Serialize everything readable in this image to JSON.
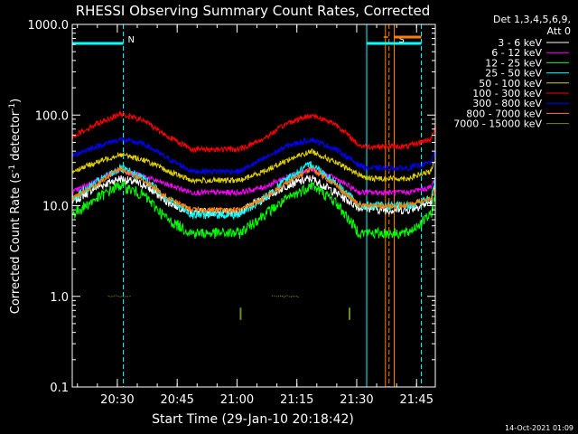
{
  "chart_data": {
    "type": "line",
    "title": "RHESSI Observing Summary Count Rates, Corrected",
    "xlabel": "Start Time (29-Jan-10 20:18:42)",
    "ylabel_main": "Corrected Count Rate (s",
    "ylabel_sup1": "-1",
    "ylabel_mid": " detector",
    "ylabel_sup2": "-1",
    "ylabel_end": ")",
    "y_scale": "log",
    "ylim": [
      0.1,
      1000
    ],
    "xlim_minutes": [
      0,
      91
    ],
    "yticks": [
      {
        "v": 1000,
        "label": "1000.0"
      },
      {
        "v": 100,
        "label": "100.0"
      },
      {
        "v": 10,
        "label": "10.0"
      },
      {
        "v": 1,
        "label": "1.0"
      },
      {
        "v": 0.1,
        "label": "0.1"
      }
    ],
    "xticks": [
      {
        "m": 11.3,
        "label": "20:30"
      },
      {
        "m": 26.3,
        "label": "20:45"
      },
      {
        "m": 41.3,
        "label": "21:00"
      },
      {
        "m": 56.3,
        "label": "21:15"
      },
      {
        "m": 71.3,
        "label": "21:30"
      },
      {
        "m": 86.3,
        "label": "21:45"
      }
    ],
    "legend_header": [
      "Det 1,3,4,5,6,9,",
      "Att 0"
    ],
    "legend_position": "right",
    "series": [
      {
        "name": "3 - 6 keV",
        "color": "#ffffff",
        "x": [
          0,
          6,
          12,
          18,
          24,
          30,
          36,
          42,
          48,
          54,
          60,
          66,
          72,
          74,
          78,
          84,
          90,
          91
        ],
        "y": [
          11,
          16,
          20,
          17,
          11,
          8.5,
          8.5,
          8.5,
          12,
          17,
          20,
          14,
          9.5,
          9.5,
          9,
          9,
          11,
          16
        ]
      },
      {
        "name": "6 - 12 keV",
        "color": "#ff00ff",
        "x": [
          0,
          6,
          12,
          18,
          24,
          30,
          36,
          42,
          48,
          54,
          60,
          66,
          72,
          74,
          78,
          84,
          90,
          91
        ],
        "y": [
          14,
          19,
          25,
          21,
          17,
          14,
          14,
          14,
          16,
          21,
          25,
          20,
          14,
          14,
          14,
          14,
          16,
          21
        ]
      },
      {
        "name": "12 - 25 keV",
        "color": "#00ff00",
        "x": [
          0,
          6,
          12,
          18,
          24,
          30,
          36,
          42,
          48,
          54,
          60,
          66,
          72,
          74,
          78,
          84,
          90,
          91
        ],
        "y": [
          8,
          12,
          17,
          13,
          7,
          5,
          5,
          5,
          8,
          12,
          17,
          11,
          5,
          5,
          5,
          5,
          8,
          14
        ]
      },
      {
        "name": "25 - 50 keV",
        "color": "#00ffff",
        "x": [
          0,
          6,
          12,
          18,
          24,
          30,
          36,
          42,
          48,
          54,
          60,
          66,
          72,
          74,
          78,
          84,
          90,
          91
        ],
        "y": [
          12,
          18,
          26,
          20,
          12,
          8,
          8,
          8,
          12,
          20,
          29,
          18,
          10,
          10,
          10,
          10,
          12,
          20
        ]
      },
      {
        "name": "50 - 100 keV",
        "color": "#e0d000",
        "x": [
          0,
          6,
          12,
          18,
          24,
          30,
          36,
          42,
          48,
          54,
          60,
          66,
          72,
          74,
          78,
          84,
          90,
          91
        ],
        "y": [
          24,
          30,
          37,
          32,
          24,
          19,
          19,
          19,
          24,
          32,
          40,
          30,
          22,
          20,
          20,
          20,
          24,
          33
        ]
      },
      {
        "name": "100 - 300 keV",
        "color": "#ff0000",
        "x": [
          0,
          6,
          12,
          18,
          24,
          30,
          36,
          42,
          48,
          54,
          60,
          66,
          72,
          74,
          78,
          84,
          90,
          91
        ],
        "y": [
          58,
          80,
          103,
          87,
          58,
          42,
          42,
          42,
          55,
          82,
          100,
          80,
          46,
          45,
          45,
          45,
          55,
          75
        ]
      },
      {
        "name": "300 - 800 keV",
        "color": "#0000ff",
        "x": [
          0,
          6,
          12,
          18,
          24,
          30,
          36,
          42,
          48,
          54,
          60,
          66,
          72,
          74,
          78,
          84,
          90,
          91
        ],
        "y": [
          36,
          45,
          54,
          48,
          33,
          24,
          24,
          24,
          33,
          46,
          54,
          42,
          28,
          26,
          26,
          26,
          30,
          40
        ]
      },
      {
        "name": "800 - 7000 keV",
        "color": "#ff7f00",
        "x": [
          0,
          6,
          12,
          18,
          24,
          30,
          36,
          42,
          48,
          54,
          60,
          66,
          72,
          74,
          78,
          84,
          90,
          91
        ],
        "y": [
          12,
          17,
          26,
          19,
          12,
          9,
          9,
          9,
          12,
          18,
          26,
          17,
          10,
          10,
          10,
          10,
          12,
          17
        ]
      },
      {
        "name": "7000 - 15000 keV",
        "color": "#6b8e23",
        "x": [
          9,
          10,
          11,
          12,
          13,
          14,
          15,
          50,
          51,
          52,
          53,
          54,
          55,
          56,
          57
        ],
        "y": [
          1.02,
          1.0,
          1.03,
          1.0,
          1.02,
          1.0,
          1.01,
          1.02,
          1.0,
          1.03,
          1.0,
          1.02,
          1.0,
          1.01,
          1.0
        ]
      }
    ],
    "markers": [
      {
        "type": "vline",
        "m": 0,
        "color": "#00ffff",
        "style": "solid"
      },
      {
        "type": "vline",
        "m": 12.8,
        "color": "#00ffff",
        "style": "dashed"
      },
      {
        "type": "vline",
        "m": 73.8,
        "color": "#00ffff",
        "style": "solid"
      },
      {
        "type": "vline",
        "m": 87.5,
        "color": "#00ffff",
        "style": "dashed"
      },
      {
        "type": "vline",
        "m": 78.5,
        "color": "#ff7f00",
        "style": "solid"
      },
      {
        "type": "vline",
        "m": 79.4,
        "color": "#ff7f00",
        "style": "dashed"
      },
      {
        "type": "vline",
        "m": 80.7,
        "color": "#ff7f00",
        "style": "solid"
      }
    ],
    "night_bars": [
      {
        "m0": 0,
        "m1": 12.8,
        "color": "#00ffff",
        "label": "N"
      },
      {
        "m0": 73.8,
        "m1": 87.5,
        "color": "#00ffff",
        "label": "S"
      },
      {
        "m0": 80.7,
        "m1": 87.5,
        "color": "#ff7f00",
        "label": ""
      }
    ],
    "ticks_olive": [
      {
        "m": 42.2,
        "y0": 0.55,
        "y1": 0.75
      },
      {
        "m": 69.5,
        "y0": 0.55,
        "y1": 0.75
      }
    ],
    "footer": "14-Oct-2021 01:09"
  }
}
